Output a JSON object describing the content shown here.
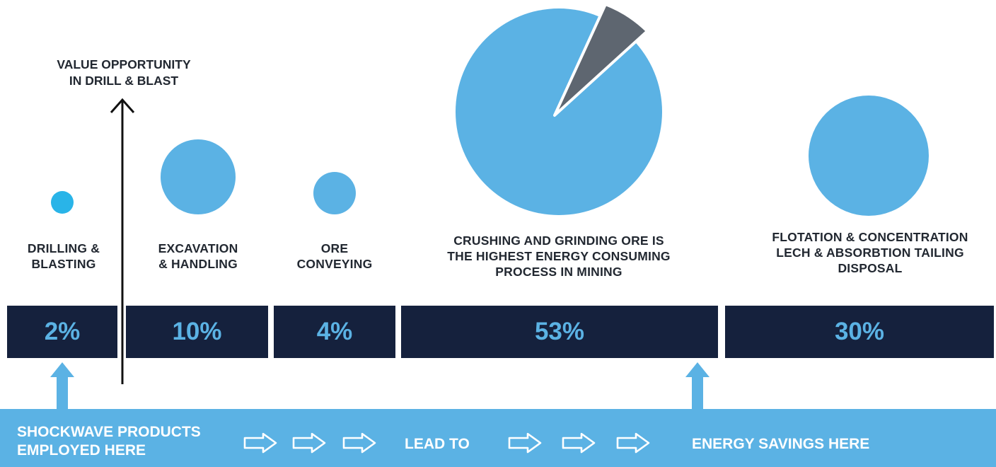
{
  "value_title": [
    "VALUE OPPORTUNITY",
    "IN DRILL & BLAST"
  ],
  "stages": [
    {
      "label": [
        "DRILLING &",
        "BLASTING"
      ],
      "percent": "2%",
      "share": 2
    },
    {
      "label": [
        "EXCAVATION",
        "& HANDLING"
      ],
      "percent": "10%",
      "share": 10
    },
    {
      "label": [
        "ORE",
        "CONVEYING"
      ],
      "percent": "4%",
      "share": 4
    },
    {
      "label": [
        "CRUSHING AND GRINDING ORE IS",
        "THE HIGHEST ENERGY CONSUMING",
        "PROCESS IN MINING"
      ],
      "percent": "53%",
      "share": 53
    },
    {
      "label": [
        "FLOTATION & CONCENTRATION",
        "LECH & ABSORBTION TAILING",
        "DISPOSAL"
      ],
      "percent": "30%",
      "share": 30
    }
  ],
  "banner": {
    "left": [
      "SHOCKWAVE PRODUCTS",
      "EMPLOYED HERE"
    ],
    "middle": "LEAD TO",
    "right": "ENERGY SAVINGS HERE"
  },
  "colors": {
    "navy": "#15213d",
    "blue": "#5bb2e4",
    "slice": "#5e6670",
    "text": "#222831"
  }
}
